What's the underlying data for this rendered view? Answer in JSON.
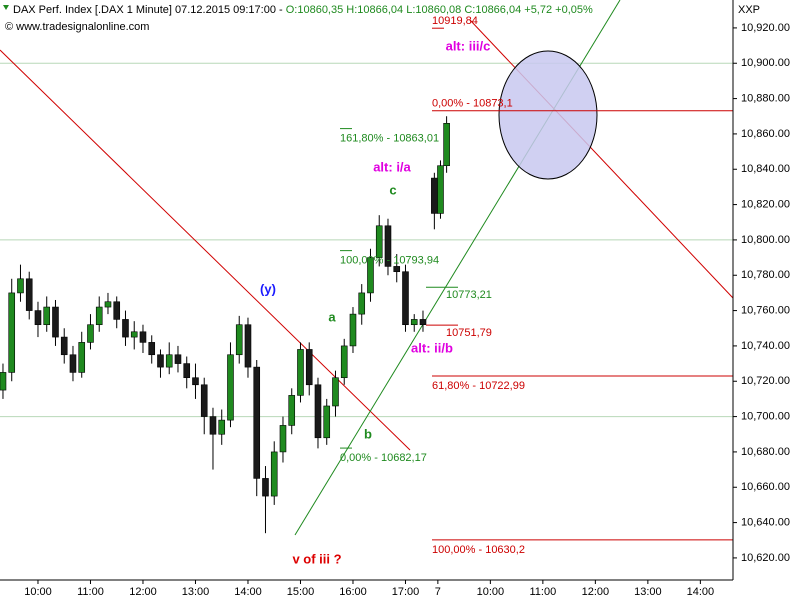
{
  "chart_data": {
    "type": "candlestick",
    "title": "DAX Perf. Index [.DAX  1 Minute] 07.12.2015 09:17:00 -",
    "quote": "O:10860,35 H:10866,04 L:10860,08 C:10866,04 +5,72 +0,05%",
    "source": "© www.tradesignalonline.com",
    "axis_tag": "XXP",
    "up_color": "#1f8a1f",
    "down_color": "#1a1a1a",
    "x": [
      20,
      30,
      40,
      50,
      60,
      70,
      80,
      90,
      100,
      110,
      120,
      130,
      140,
      150,
      160,
      170,
      180,
      190,
      200,
      210,
      220,
      230,
      240,
      250,
      260,
      270,
      280,
      290,
      300,
      310,
      320,
      330,
      340,
      350,
      360,
      370,
      380,
      390,
      400,
      410,
      420,
      430,
      440,
      450,
      460,
      470,
      480,
      490,
      500,
      513,
      520,
      527
    ],
    "open": [
      10715,
      10725,
      10770,
      10778,
      10760,
      10752,
      10762,
      10745,
      10735,
      10725,
      10742,
      10752,
      10762,
      10765,
      10755,
      10745,
      10748,
      10742,
      10735,
      10728,
      10735,
      10730,
      10722,
      10718,
      10700,
      10690,
      10698,
      10735,
      10752,
      10728,
      10665,
      10655,
      10680,
      10695,
      10712,
      10738,
      10718,
      10688,
      10706,
      10722,
      10740,
      10758,
      10770,
      10790,
      10808,
      10785,
      10782,
      10752,
      10755,
      10835,
      10815,
      10842
    ],
    "high": [
      10730,
      10778,
      10786,
      10782,
      10765,
      10768,
      10766,
      10750,
      10740,
      10748,
      10758,
      10768,
      10770,
      10768,
      10760,
      10754,
      10752,
      10746,
      10738,
      10742,
      10740,
      10734,
      10730,
      10722,
      10705,
      10704,
      10742,
      10757,
      10756,
      10732,
      10672,
      10686,
      10700,
      10716,
      10742,
      10742,
      10722,
      10710,
      10726,
      10744,
      10762,
      10775,
      10795,
      10814,
      10812,
      10792,
      10786,
      10758,
      10760,
      10838,
      10845,
      10870
    ],
    "low": [
      10710,
      10720,
      10765,
      10755,
      10745,
      10748,
      10740,
      10730,
      10720,
      10722,
      10738,
      10748,
      10758,
      10750,
      10740,
      10738,
      10736,
      10730,
      10722,
      10724,
      10725,
      10716,
      10710,
      10690,
      10670,
      10684,
      10694,
      10730,
      10722,
      10655,
      10634,
      10650,
      10674,
      10690,
      10708,
      10712,
      10682,
      10684,
      10700,
      10718,
      10736,
      10752,
      10765,
      10785,
      10780,
      10776,
      10748,
      10748,
      10748,
      10806,
      10812,
      10838
    ],
    "close": [
      10725,
      10770,
      10778,
      10760,
      10752,
      10762,
      10745,
      10735,
      10725,
      10742,
      10752,
      10762,
      10765,
      10755,
      10745,
      10748,
      10742,
      10735,
      10728,
      10735,
      10730,
      10722,
      10718,
      10700,
      10690,
      10698,
      10735,
      10752,
      10728,
      10665,
      10655,
      10680,
      10695,
      10712,
      10738,
      10718,
      10688,
      10706,
      10722,
      10740,
      10758,
      10770,
      10790,
      10808,
      10785,
      10782,
      10752,
      10755,
      10752,
      10815,
      10842,
      10866
    ],
    "xlim": [
      16.6,
      854.3
    ],
    "xticks": [
      {
        "value": 60,
        "label": "10:00"
      },
      {
        "value": 120,
        "label": "11:00"
      },
      {
        "value": 180,
        "label": "12:00"
      },
      {
        "value": 240,
        "label": "13:00"
      },
      {
        "value": 300,
        "label": "14:00"
      },
      {
        "value": 360,
        "label": "15:00"
      },
      {
        "value": 420,
        "label": "16:00"
      },
      {
        "value": 480,
        "label": "17:00"
      },
      {
        "value": 517,
        "label": "7"
      },
      {
        "value": 577,
        "label": "10:00"
      },
      {
        "value": 637,
        "label": "11:00"
      },
      {
        "value": 697,
        "label": "12:00"
      },
      {
        "value": 757,
        "label": "13:00"
      },
      {
        "value": 817,
        "label": "14:00"
      }
    ],
    "ylim": [
      10607.5,
      10935.8
    ],
    "yticks": [
      {
        "value": 10620,
        "label": "10,620.00"
      },
      {
        "value": 10640,
        "label": "10,640.00"
      },
      {
        "value": 10660,
        "label": "10,660.00"
      },
      {
        "value": 10680,
        "label": "10,680.00"
      },
      {
        "value": 10700,
        "label": "10,700.00"
      },
      {
        "value": 10720,
        "label": "10,720.00"
      },
      {
        "value": 10740,
        "label": "10,740.00"
      },
      {
        "value": 10760,
        "label": "10,760.00"
      },
      {
        "value": 10780,
        "label": "10,780.00"
      },
      {
        "value": 10800,
        "label": "10,800.00"
      },
      {
        "value": 10820,
        "label": "10,820.00"
      },
      {
        "value": 10840,
        "label": "10,840.00"
      },
      {
        "value": 10860,
        "label": "10,860.00"
      },
      {
        "value": 10880,
        "label": "10,880.00"
      },
      {
        "value": 10900,
        "label": "10,900.00"
      },
      {
        "value": 10920,
        "label": "10,920.00"
      }
    ],
    "grid_lines": [
      10700,
      10800,
      10900
    ],
    "levels": [
      {
        "label": "10919,84",
        "value": 10919.84,
        "color": "#cc0000",
        "extends": false
      },
      {
        "label": "0,00% - 10873,1",
        "value": 10873.1,
        "color": "#cc0000",
        "extends": true
      },
      {
        "label": "161,80% - 10863,01",
        "value": 10863.01,
        "color": "#1f8a1f",
        "extends": false
      },
      {
        "label": "100,00% - 10793,94",
        "value": 10793.94,
        "color": "#1f8a1f",
        "extends": false
      },
      {
        "label": "10773,21",
        "value": 10773.21,
        "color": "#1f8a1f",
        "extends": false
      },
      {
        "label": "10751,79",
        "value": 10751.79,
        "color": "#cc0000",
        "extends": false
      },
      {
        "label": "61,80% - 10722,99",
        "value": 10722.99,
        "color": "#cc0000",
        "extends": true
      },
      {
        "label": "0,00% - 10682,17",
        "value": 10682.17,
        "color": "#1f8a1f",
        "extends": false
      },
      {
        "label": "100,00% - 10630,2",
        "value": 10630.2,
        "color": "#cc0000",
        "extends": true
      }
    ],
    "annotations": [
      {
        "text": "(y)",
        "color": "#1a1aff"
      },
      {
        "text": "a",
        "color": "#1f8a1f"
      },
      {
        "text": "b",
        "color": "#1f8a1f"
      },
      {
        "text": "c",
        "color": "#1f8a1f"
      },
      {
        "text": "alt: i/a",
        "color": "#e000e0"
      },
      {
        "text": "alt: iii/c",
        "color": "#e000e0"
      },
      {
        "text": "alt: ii/b",
        "color": "#e000e0"
      },
      {
        "text": "v of iii ?",
        "color": "#dd0000"
      }
    ]
  }
}
